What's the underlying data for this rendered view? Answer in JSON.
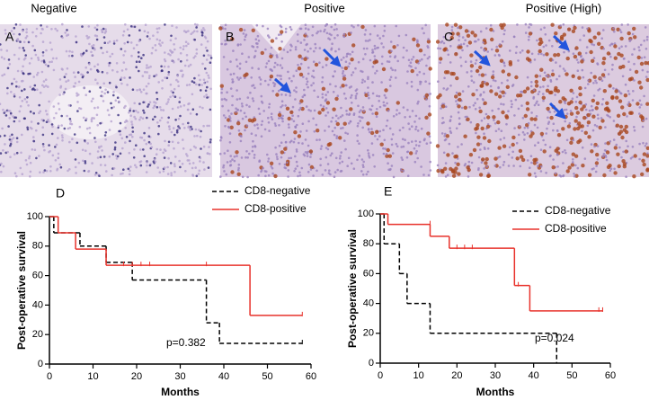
{
  "panels": [
    {
      "label": "A",
      "title": "Negative"
    },
    {
      "label": "B",
      "title": "Positive"
    },
    {
      "label": "C",
      "title": "Positive (High)"
    }
  ],
  "chart_data": [
    {
      "type": "step",
      "panel_label": "D",
      "xlabel": "Months",
      "ylabel": "Post-operative survival",
      "annotation": "p=0.382",
      "xlim": [
        0,
        60
      ],
      "ylim": [
        0,
        100
      ],
      "xticks": [
        0,
        10,
        20,
        30,
        40,
        50,
        60
      ],
      "yticks": [
        0,
        20,
        40,
        60,
        80,
        100
      ],
      "legend": "upper right",
      "series": [
        {
          "name": "CD8-negative",
          "color": "#000000",
          "dash": true,
          "x": [
            0,
            1,
            7,
            13,
            19,
            36,
            39,
            58
          ],
          "values": [
            100,
            89,
            80,
            69,
            57,
            28,
            14,
            14
          ],
          "censor_x": [
            58
          ],
          "censor_values": [
            14
          ]
        },
        {
          "name": "CD8-positive",
          "color": "#e8322b",
          "dash": false,
          "x": [
            0,
            2,
            6,
            13,
            46,
            58
          ],
          "values": [
            100,
            89,
            78,
            67,
            33,
            33
          ],
          "censor_x": [
            17,
            19,
            21,
            23,
            36,
            58
          ],
          "censor_values": [
            67,
            67,
            67,
            67,
            67,
            33
          ]
        }
      ]
    },
    {
      "type": "step",
      "panel_label": "E",
      "xlabel": "Months",
      "ylabel": "Post-operative survival",
      "annotation": "p=0.024",
      "xlim": [
        0,
        60
      ],
      "ylim": [
        0,
        100
      ],
      "xticks": [
        0,
        10,
        20,
        30,
        40,
        50,
        60
      ],
      "yticks": [
        0,
        20,
        40,
        60,
        80,
        100
      ],
      "legend": "upper right",
      "series": [
        {
          "name": "CD8-negative",
          "color": "#000000",
          "dash": true,
          "x": [
            0,
            1,
            5,
            7,
            13,
            46
          ],
          "values": [
            100,
            80,
            60,
            40,
            20,
            0
          ],
          "censor_x": [],
          "censor_values": []
        },
        {
          "name": "CD8-positive",
          "color": "#e8322b",
          "dash": false,
          "x": [
            0,
            2,
            13,
            18,
            35,
            39,
            58
          ],
          "values": [
            100,
            93,
            85,
            77,
            52,
            35,
            35
          ],
          "censor_x": [
            13,
            20,
            22,
            24,
            36,
            57,
            58
          ],
          "censor_values": [
            93,
            77,
            77,
            77,
            52,
            35,
            35
          ]
        }
      ]
    }
  ]
}
